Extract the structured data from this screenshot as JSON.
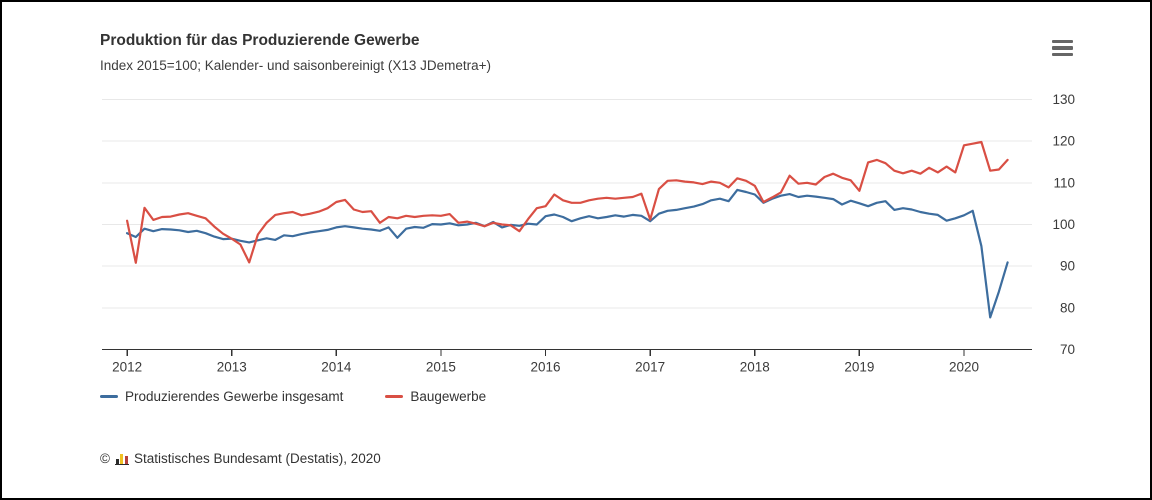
{
  "header": {
    "title": "Produktion für das Produzierende Gewerbe",
    "subtitle": "Index 2015=100; Kalender- und saisonbereinigt (X13 JDemetra+)"
  },
  "menu": {
    "icon": "hamburger-context-menu"
  },
  "legend": {
    "items": [
      {
        "label": "Produzierendes Gewerbe insgesamt",
        "color": "#3d6d9e"
      },
      {
        "label": "Baugewerbe",
        "color": "#d94f44"
      }
    ]
  },
  "footer": {
    "copyright_symbol": "©",
    "logo": "destatis-bar-chart-icon",
    "source": "Statistisches Bundesamt (Destatis), 2020"
  },
  "colors": {
    "grid": "#e8e8e8",
    "axis": "#333333",
    "tick_label": "#3b3b3b",
    "series_blue": "#3d6d9e",
    "series_red": "#d94f44"
  },
  "chart_data": {
    "type": "line",
    "title": "Produktion für das Produzierende Gewerbe",
    "subtitle": "Index 2015=100; Kalender- und saisonbereinigt (X13 JDemetra+)",
    "xlabel": "",
    "ylabel": "",
    "x_unit": "monthly, Jan 2012 - Jun 2020",
    "xlim": [
      2011.76,
      2020.65
    ],
    "ylim": [
      70,
      130
    ],
    "y_ticks": [
      70,
      80,
      90,
      100,
      110,
      120,
      130
    ],
    "x_ticks": [
      2012,
      2013,
      2014,
      2015,
      2016,
      2017,
      2018,
      2019,
      2020
    ],
    "grid": "horizontal",
    "legend_position": "bottom-left",
    "series": [
      {
        "name": "Produzierendes Gewerbe insgesamt",
        "color": "#3d6d9e",
        "start_year": 2012,
        "start_month": 1,
        "values": [
          97.9,
          97.0,
          99.0,
          98.4,
          98.9,
          98.8,
          98.6,
          98.2,
          98.5,
          97.9,
          97.1,
          96.5,
          96.6,
          96.1,
          95.7,
          96.2,
          96.7,
          96.3,
          97.4,
          97.2,
          97.7,
          98.1,
          98.4,
          98.7,
          99.3,
          99.6,
          99.3,
          99.0,
          98.8,
          98.5,
          99.3,
          96.8,
          99.0,
          99.4,
          99.2,
          100.1,
          100.0,
          100.3,
          99.8,
          100.0,
          100.4,
          99.6,
          100.6,
          99.3,
          99.9,
          99.7,
          100.2,
          100.0,
          102.0,
          102.4,
          101.8,
          100.8,
          101.5,
          102.0,
          101.5,
          101.8,
          102.2,
          101.9,
          102.3,
          102.1,
          100.8,
          102.6,
          103.3,
          103.5,
          103.9,
          104.3,
          104.9,
          105.8,
          106.2,
          105.6,
          108.3,
          107.8,
          107.2,
          105.2,
          106.2,
          106.9,
          107.3,
          106.6,
          106.9,
          106.7,
          106.4,
          106.1,
          104.8,
          105.7,
          105.1,
          104.4,
          105.2,
          105.6,
          103.5,
          103.9,
          103.6,
          103.0,
          102.6,
          102.3,
          100.9,
          101.5,
          102.2,
          103.3,
          94.8,
          77.7,
          83.9,
          90.9
        ]
      },
      {
        "name": "Baugewerbe",
        "color": "#d94f44",
        "start_year": 2012,
        "start_month": 1,
        "values": [
          100.9,
          90.8,
          104.0,
          101.1,
          101.8,
          101.9,
          102.4,
          102.7,
          102.1,
          101.5,
          99.5,
          97.8,
          96.6,
          95.2,
          90.9,
          97.6,
          100.4,
          102.3,
          102.7,
          103.0,
          102.2,
          102.6,
          103.1,
          103.9,
          105.4,
          105.9,
          103.6,
          103.0,
          103.2,
          100.4,
          101.8,
          101.5,
          102.1,
          101.8,
          102.1,
          102.2,
          102.1,
          102.5,
          100.4,
          100.7,
          100.2,
          99.6,
          100.4,
          100.0,
          99.8,
          98.4,
          101.3,
          103.9,
          104.4,
          107.2,
          105.8,
          105.2,
          105.2,
          105.8,
          106.2,
          106.4,
          106.2,
          106.4,
          106.6,
          107.4,
          101.2,
          108.5,
          110.5,
          110.6,
          110.3,
          110.1,
          109.7,
          110.3,
          110.0,
          108.9,
          111.1,
          110.5,
          109.3,
          105.4,
          106.5,
          107.7,
          111.7,
          109.8,
          110.0,
          109.6,
          111.4,
          112.2,
          111.2,
          110.6,
          108.1,
          114.9,
          115.5,
          114.7,
          112.9,
          112.3,
          112.9,
          112.2,
          113.6,
          112.5,
          113.9,
          112.5,
          119.0,
          119.4,
          119.8,
          112.9,
          113.2,
          115.5
        ]
      }
    ]
  }
}
